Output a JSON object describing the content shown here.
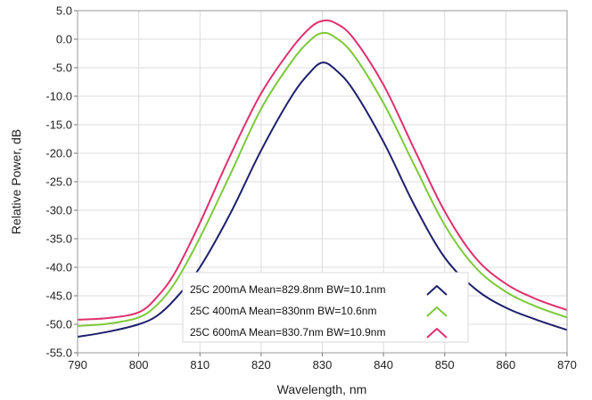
{
  "chart_data": {
    "type": "line",
    "title": "",
    "xlabel": "Wavelength, nm",
    "ylabel": "Relative Power, dB",
    "xlim": [
      790,
      870
    ],
    "ylim": [
      -55,
      5
    ],
    "xticks": [
      790,
      800,
      810,
      820,
      830,
      840,
      850,
      860,
      870
    ],
    "xtick_labels": [
      "790",
      "800",
      "810",
      "820",
      "830",
      "840",
      "850",
      "860",
      "870"
    ],
    "yticks": [
      5,
      0,
      -5,
      -10,
      -15,
      -20,
      -25,
      -30,
      -35,
      -40,
      -45,
      -50,
      -55
    ],
    "ytick_labels": [
      "5.0",
      "0.0",
      "-5.0",
      "-10.0",
      "-15.0",
      "-20.0",
      "-25.0",
      "-30.0",
      "-35.0",
      "-40.0",
      "-45.0",
      "-50.0",
      "-55.0"
    ],
    "grid": true,
    "legend_position": "bottom-center",
    "series": [
      {
        "name": "25C 200mA Mean=829.8nm BW=10.1nm",
        "color": "#1f1f6e",
        "x": [
          790,
          795,
          800,
          803,
          806,
          810,
          815,
          820,
          825,
          828,
          830,
          832,
          835,
          840,
          845,
          850,
          855,
          860,
          865,
          870
        ],
        "y": [
          -52.2,
          -51.3,
          -50.0,
          -48.5,
          -45.5,
          -40.0,
          -30.5,
          -19.5,
          -10.0,
          -5.8,
          -4.1,
          -5.2,
          -8.8,
          -18.0,
          -29.0,
          -38.3,
          -43.8,
          -47.1,
          -49.2,
          -51.0
        ]
      },
      {
        "name": "25C 400mA Mean=830nm BW=10.6nm",
        "color": "#7dc93a",
        "x": [
          790,
          795,
          800,
          803,
          806,
          810,
          815,
          820,
          825,
          828,
          830,
          832,
          835,
          840,
          845,
          850,
          855,
          860,
          865,
          870
        ],
        "y": [
          -50.3,
          -49.9,
          -48.8,
          -46.6,
          -42.6,
          -34.8,
          -23.6,
          -12.2,
          -3.9,
          -0.2,
          1.1,
          0.4,
          -2.6,
          -11.2,
          -22.0,
          -32.6,
          -40.0,
          -44.3,
          -46.9,
          -48.8
        ]
      },
      {
        "name": "25C 600mA Mean=830.7nm BW=10.9nm",
        "color": "#e0306e",
        "x": [
          790,
          795,
          800,
          803,
          806,
          810,
          815,
          820,
          825,
          828,
          830,
          832,
          835,
          840,
          845,
          850,
          855,
          860,
          865,
          870
        ],
        "y": [
          -49.2,
          -48.9,
          -47.9,
          -45.2,
          -40.8,
          -32.2,
          -20.3,
          -9.5,
          -1.6,
          2.0,
          3.2,
          2.9,
          0.3,
          -8.0,
          -19.2,
          -30.2,
          -38.3,
          -42.9,
          -45.6,
          -47.5
        ]
      }
    ]
  }
}
